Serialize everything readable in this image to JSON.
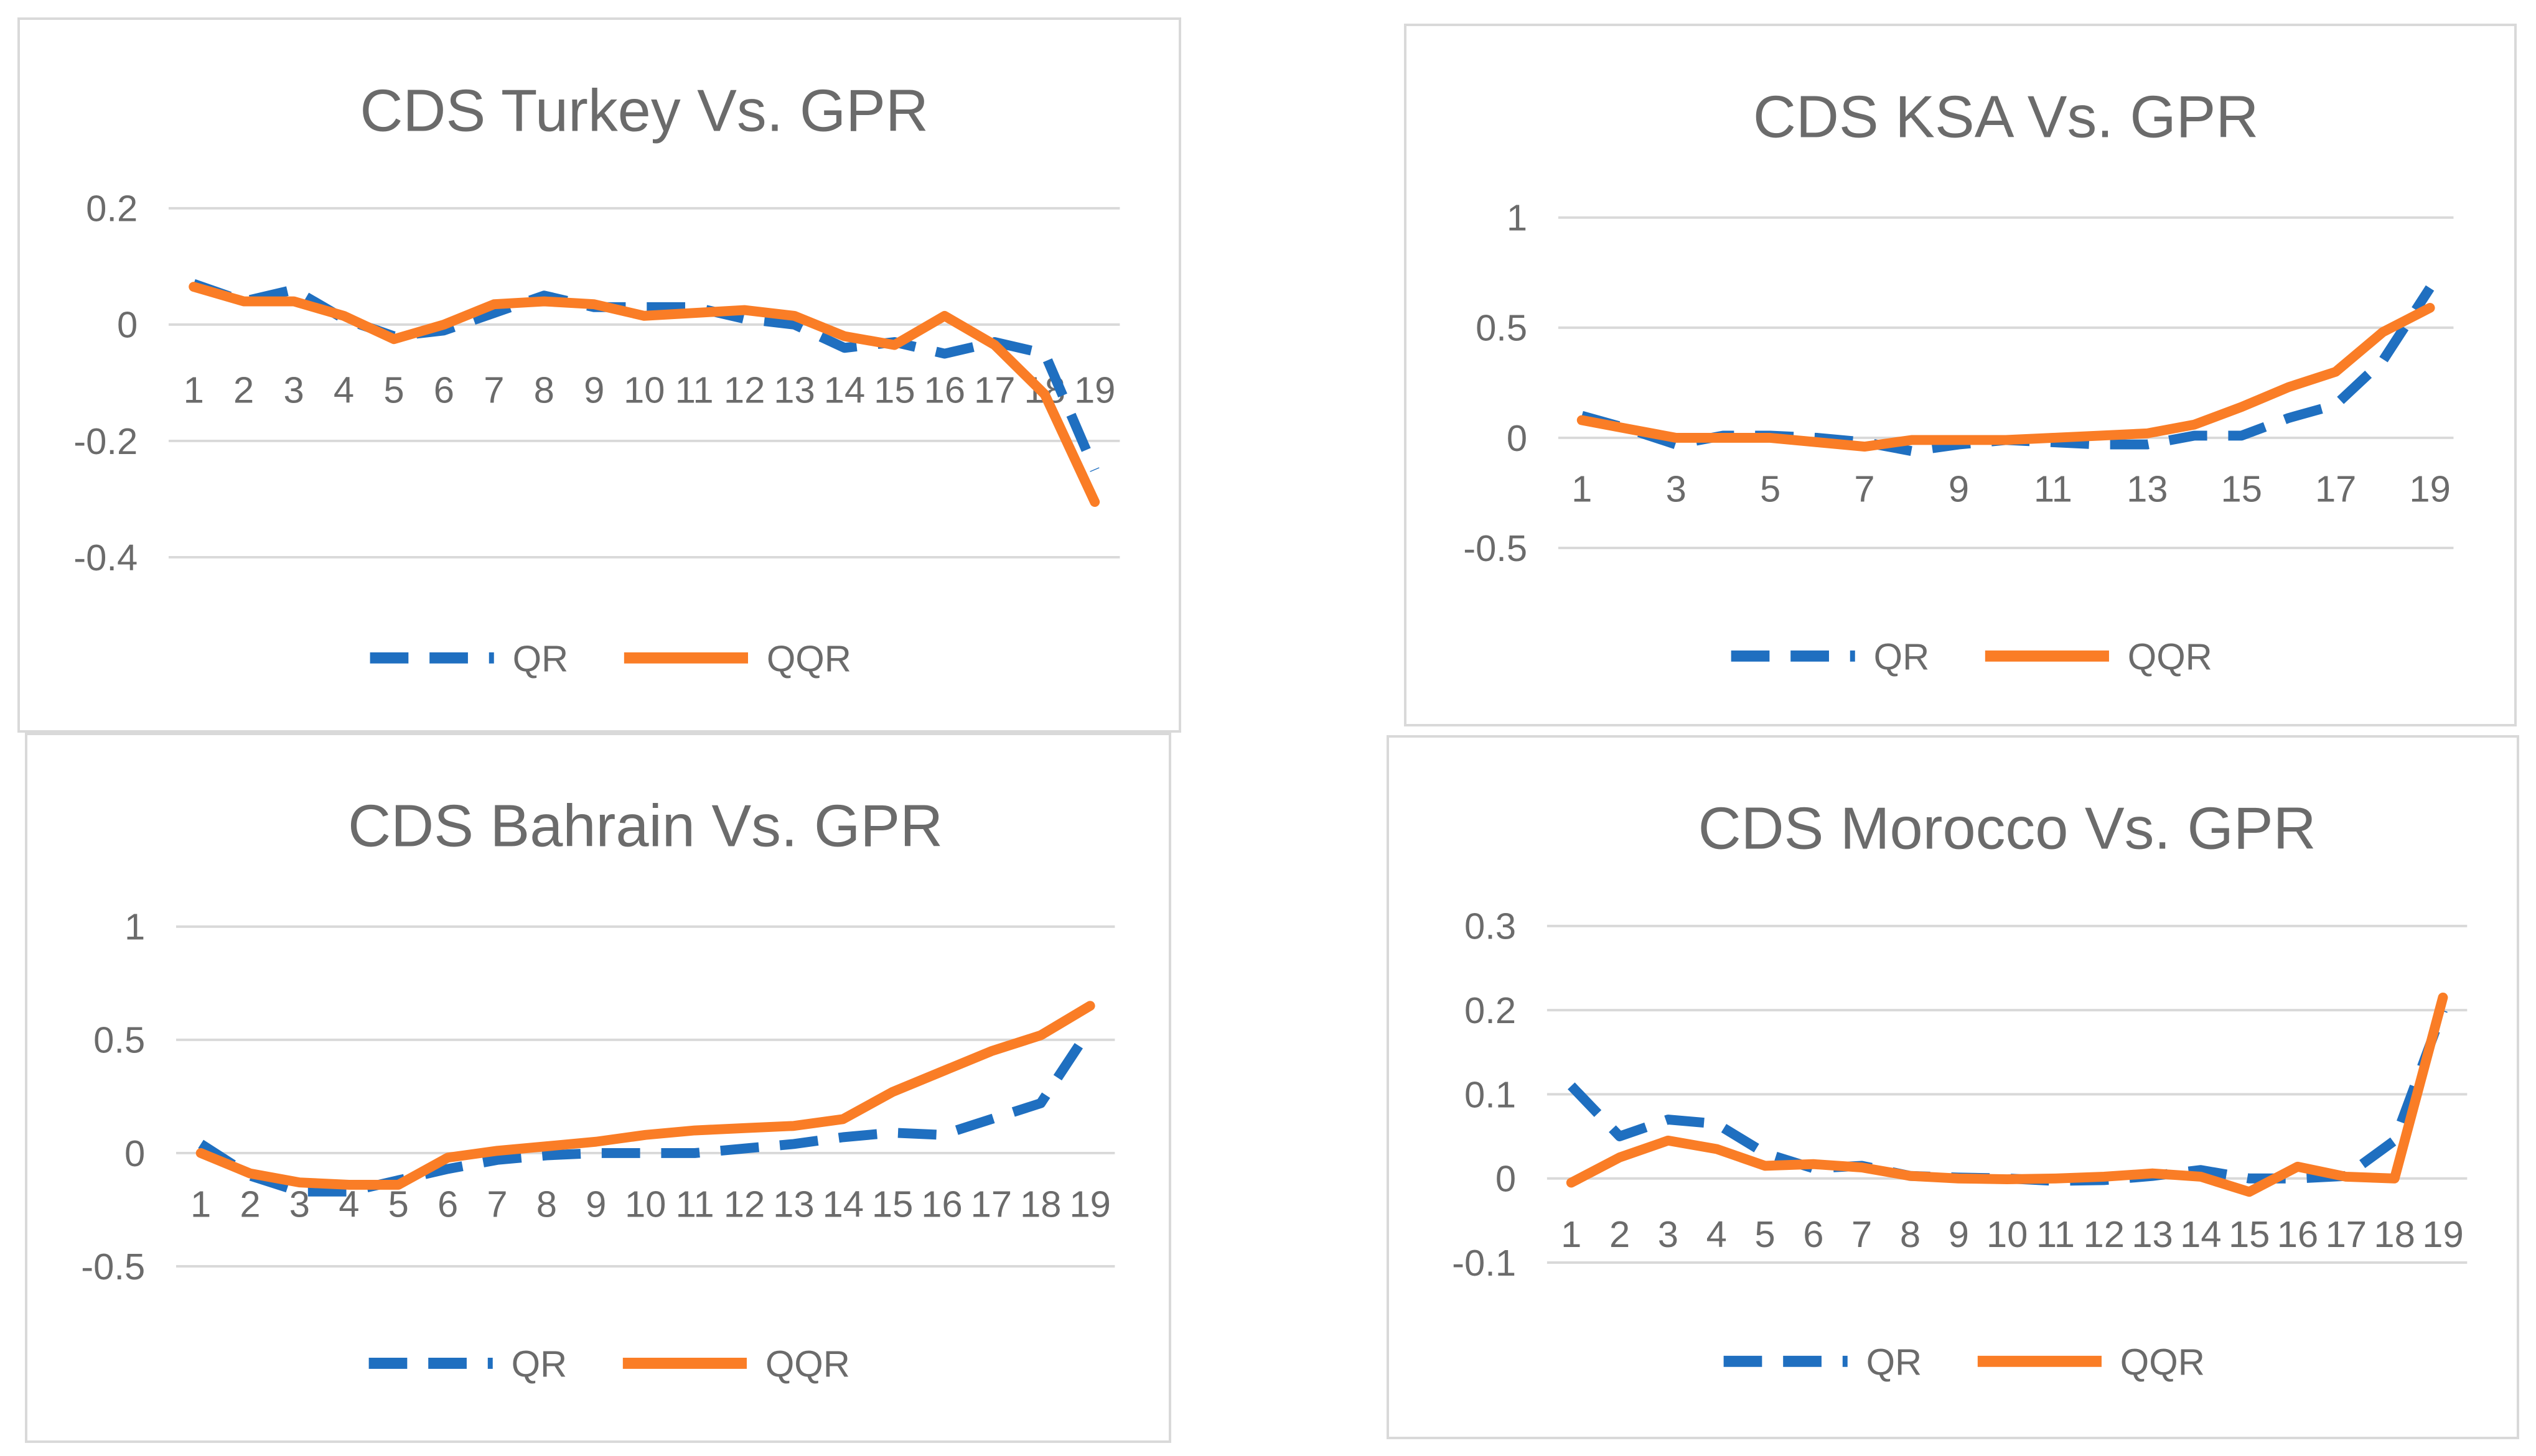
{
  "colors": {
    "qr": "#1f6fc0",
    "qqr": "#fa7d26",
    "grid": "#d9d9d9",
    "text": "#6b6b6b"
  },
  "chart_data": [
    {
      "type": "line",
      "title": "CDS Turkey Vs. GPR",
      "x": [
        1,
        2,
        3,
        4,
        5,
        6,
        7,
        8,
        9,
        10,
        11,
        12,
        13,
        14,
        15,
        16,
        17,
        18,
        19
      ],
      "x_tick_labels": [
        "1",
        "2",
        "3",
        "4",
        "5",
        "6",
        "7",
        "8",
        "9",
        "10",
        "11",
        "12",
        "13",
        "14",
        "15",
        "16",
        "17",
        "18",
        "19"
      ],
      "y_ticks": [
        0.2,
        0,
        -0.2,
        -0.4
      ],
      "y_tick_labels": [
        "0.2",
        "0",
        "-0.2",
        "-0.4"
      ],
      "ylim": [
        -0.4,
        0.2
      ],
      "grid": true,
      "legend_position": "bottom",
      "series": [
        {
          "name": "QR",
          "style": "dashed",
          "values": [
            0.07,
            0.04,
            0.06,
            0.01,
            -0.02,
            -0.01,
            0.02,
            0.05,
            0.03,
            0.03,
            0.03,
            0.01,
            0.0,
            -0.04,
            -0.03,
            -0.05,
            -0.03,
            -0.05,
            -0.25
          ]
        },
        {
          "name": "QQR",
          "style": "solid",
          "values": [
            0.065,
            0.04,
            0.04,
            0.015,
            -0.025,
            0.0,
            0.035,
            0.04,
            0.035,
            0.015,
            0.02,
            0.025,
            0.015,
            -0.02,
            -0.035,
            0.015,
            -0.035,
            -0.12,
            -0.305
          ]
        }
      ]
    },
    {
      "type": "line",
      "title": "CDS KSA Vs. GPR",
      "x": [
        1,
        2,
        3,
        4,
        5,
        6,
        7,
        8,
        9,
        10,
        11,
        12,
        13,
        14,
        15,
        16,
        17,
        18,
        19
      ],
      "x_tick_labels": [
        "1",
        "",
        "3",
        "",
        "5",
        "",
        "7",
        "",
        "9",
        "",
        "11",
        "",
        "13",
        "",
        "15",
        "",
        "17",
        "",
        "19"
      ],
      "y_ticks": [
        1,
        0.5,
        0,
        -0.5
      ],
      "y_tick_labels": [
        "1",
        "0.5",
        "0",
        "-0.5"
      ],
      "ylim": [
        -0.5,
        1
      ],
      "grid": true,
      "legend_position": "bottom",
      "series": [
        {
          "name": "QR",
          "style": "dashed",
          "values": [
            0.1,
            0.04,
            -0.03,
            0.01,
            0.01,
            0.0,
            -0.02,
            -0.06,
            -0.03,
            -0.01,
            -0.02,
            -0.03,
            -0.03,
            0.01,
            0.01,
            0.09,
            0.15,
            0.35,
            0.68
          ]
        },
        {
          "name": "QQR",
          "style": "solid",
          "values": [
            0.08,
            0.04,
            0.0,
            0.0,
            0.0,
            -0.02,
            -0.04,
            -0.01,
            -0.01,
            -0.01,
            0.0,
            0.01,
            0.02,
            0.06,
            0.14,
            0.23,
            0.3,
            0.48,
            0.59
          ]
        }
      ]
    },
    {
      "type": "line",
      "title": "CDS Bahrain Vs. GPR",
      "x": [
        1,
        2,
        3,
        4,
        5,
        6,
        7,
        8,
        9,
        10,
        11,
        12,
        13,
        14,
        15,
        16,
        17,
        18,
        19
      ],
      "x_tick_labels": [
        "1",
        "2",
        "3",
        "4",
        "5",
        "6",
        "7",
        "8",
        "9",
        "10",
        "11",
        "12",
        "13",
        "14",
        "15",
        "16",
        "17",
        "18",
        "19"
      ],
      "y_ticks": [
        1,
        0.5,
        0,
        -0.5
      ],
      "y_tick_labels": [
        "1",
        "0.5",
        "0",
        "-0.5"
      ],
      "ylim": [
        -0.5,
        1
      ],
      "grid": true,
      "legend_position": "bottom",
      "series": [
        {
          "name": "QR",
          "style": "dashed",
          "values": [
            0.04,
            -0.1,
            -0.17,
            -0.17,
            -0.12,
            -0.07,
            -0.03,
            -0.01,
            0.0,
            0.0,
            0.0,
            0.02,
            0.04,
            0.07,
            0.09,
            0.08,
            0.15,
            0.22,
            0.55
          ]
        },
        {
          "name": "QQR",
          "style": "solid",
          "values": [
            0.0,
            -0.09,
            -0.13,
            -0.14,
            -0.14,
            -0.02,
            0.01,
            0.03,
            0.05,
            0.08,
            0.1,
            0.11,
            0.12,
            0.15,
            0.27,
            0.36,
            0.45,
            0.52,
            0.65
          ]
        }
      ]
    },
    {
      "type": "line",
      "title": "CDS Morocco Vs. GPR",
      "x": [
        1,
        2,
        3,
        4,
        5,
        6,
        7,
        8,
        9,
        10,
        11,
        12,
        13,
        14,
        15,
        16,
        17,
        18,
        19
      ],
      "x_tick_labels": [
        "1",
        "2",
        "3",
        "4",
        "5",
        "6",
        "7",
        "8",
        "9",
        "10",
        "11",
        "12",
        "13",
        "14",
        "15",
        "16",
        "17",
        "18",
        "19"
      ],
      "y_ticks": [
        0.3,
        0.2,
        0.1,
        0,
        -0.1
      ],
      "y_tick_labels": [
        "0.3",
        "0.2",
        "0.1",
        "0",
        "-0.1"
      ],
      "ylim": [
        -0.1,
        0.3
      ],
      "grid": true,
      "legend_position": "bottom",
      "series": [
        {
          "name": "QR",
          "style": "dashed",
          "values": [
            0.11,
            0.05,
            0.07,
            0.065,
            0.03,
            0.012,
            0.015,
            0.003,
            0.001,
            0.0,
            -0.003,
            -0.002,
            0.003,
            0.01,
            0.0,
            0.0,
            0.003,
            0.045,
            0.2
          ]
        },
        {
          "name": "QQR",
          "style": "solid",
          "values": [
            -0.005,
            0.025,
            0.045,
            0.035,
            0.015,
            0.017,
            0.013,
            0.003,
            0.0,
            -0.001,
            0.0,
            0.002,
            0.006,
            0.002,
            -0.016,
            0.014,
            0.002,
            0.0,
            0.215
          ]
        }
      ]
    }
  ]
}
